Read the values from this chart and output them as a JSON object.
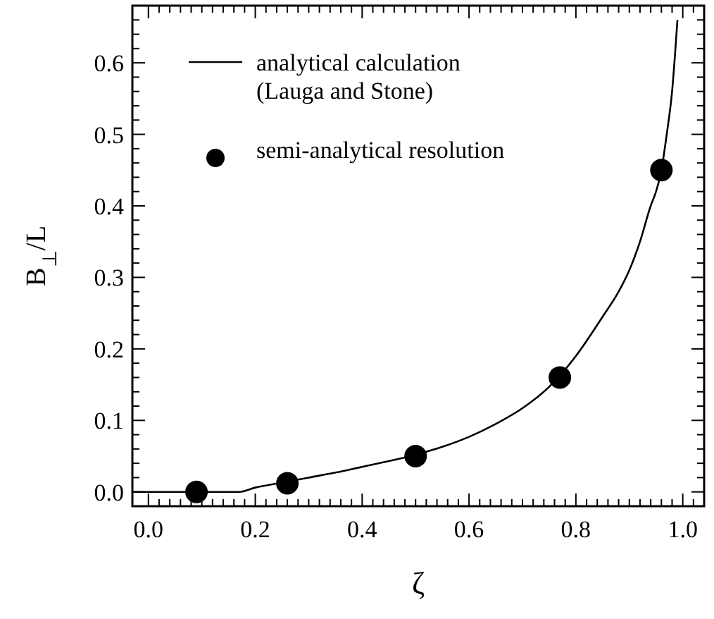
{
  "chart_data": {
    "type": "line",
    "xlabel": "ζ",
    "ylabel": "B$_{⊥}$/L",
    "xlim": [
      -0.03,
      1.04
    ],
    "ylim": [
      -0.02,
      0.68
    ],
    "xticks": [
      {
        "value": 0,
        "label": "0.0"
      },
      {
        "value": 0.02,
        "label": null
      },
      {
        "value": 0.04,
        "label": null
      },
      {
        "value": 0.06,
        "label": null
      },
      {
        "value": 0.08,
        "label": null
      },
      {
        "value": 0.1,
        "label": null
      },
      {
        "value": 0.12,
        "label": null
      },
      {
        "value": 0.14,
        "label": null
      },
      {
        "value": 0.16,
        "label": null
      },
      {
        "value": 0.18,
        "label": null
      },
      {
        "value": 0.2,
        "label": "0.2"
      },
      {
        "value": 0.22,
        "label": null
      },
      {
        "value": 0.24,
        "label": null
      },
      {
        "value": 0.26,
        "label": null
      },
      {
        "value": 0.28,
        "label": null
      },
      {
        "value": 0.3,
        "label": null
      },
      {
        "value": 0.32,
        "label": null
      },
      {
        "value": 0.34,
        "label": null
      },
      {
        "value": 0.36,
        "label": null
      },
      {
        "value": 0.38,
        "label": null
      },
      {
        "value": 0.4,
        "label": "0.4"
      },
      {
        "value": 0.42,
        "label": null
      },
      {
        "value": 0.44,
        "label": null
      },
      {
        "value": 0.46,
        "label": null
      },
      {
        "value": 0.48,
        "label": null
      },
      {
        "value": 0.5,
        "label": null
      },
      {
        "value": 0.52,
        "label": null
      },
      {
        "value": 0.54,
        "label": null
      },
      {
        "value": 0.56,
        "label": null
      },
      {
        "value": 0.58,
        "label": null
      },
      {
        "value": 0.6,
        "label": "0.6"
      },
      {
        "value": 0.62,
        "label": null
      },
      {
        "value": 0.64,
        "label": null
      },
      {
        "value": 0.66,
        "label": null
      },
      {
        "value": 0.68,
        "label": null
      },
      {
        "value": 0.7,
        "label": null
      },
      {
        "value": 0.72,
        "label": null
      },
      {
        "value": 0.74,
        "label": null
      },
      {
        "value": 0.76,
        "label": null
      },
      {
        "value": 0.78,
        "label": null
      },
      {
        "value": 0.8,
        "label": "0.8"
      },
      {
        "value": 0.82,
        "label": null
      },
      {
        "value": 0.84,
        "label": null
      },
      {
        "value": 0.86,
        "label": null
      },
      {
        "value": 0.88,
        "label": null
      },
      {
        "value": 0.9,
        "label": null
      },
      {
        "value": 0.92,
        "label": null
      },
      {
        "value": 0.94,
        "label": null
      },
      {
        "value": 0.96,
        "label": null
      },
      {
        "value": 0.98,
        "label": null
      },
      {
        "value": 1,
        "label": "1.0"
      },
      {
        "value": 1.02,
        "label": null
      }
    ],
    "yticks": [
      {
        "value": 0,
        "label": "0.0"
      },
      {
        "value": 0.02,
        "label": null
      },
      {
        "value": 0.04,
        "label": null
      },
      {
        "value": 0.06,
        "label": null
      },
      {
        "value": 0.08,
        "label": null
      },
      {
        "value": 0.1,
        "label": "0.1"
      },
      {
        "value": 0.12,
        "label": null
      },
      {
        "value": 0.14,
        "label": null
      },
      {
        "value": 0.16,
        "label": null
      },
      {
        "value": 0.18,
        "label": null
      },
      {
        "value": 0.2,
        "label": "0.2"
      },
      {
        "value": 0.22,
        "label": null
      },
      {
        "value": 0.24,
        "label": null
      },
      {
        "value": 0.26,
        "label": null
      },
      {
        "value": 0.28,
        "label": null
      },
      {
        "value": 0.3,
        "label": "0.3"
      },
      {
        "value": 0.32,
        "label": null
      },
      {
        "value": 0.34,
        "label": null
      },
      {
        "value": 0.36,
        "label": null
      },
      {
        "value": 0.38,
        "label": null
      },
      {
        "value": 0.4,
        "label": "0.4"
      },
      {
        "value": 0.42,
        "label": null
      },
      {
        "value": 0.44,
        "label": null
      },
      {
        "value": 0.46,
        "label": null
      },
      {
        "value": 0.48,
        "label": null
      },
      {
        "value": 0.5,
        "label": "0.5"
      },
      {
        "value": 0.52,
        "label": null
      },
      {
        "value": 0.54,
        "label": null
      },
      {
        "value": 0.56,
        "label": null
      },
      {
        "value": 0.58,
        "label": null
      },
      {
        "value": 0.6,
        "label": "0.6"
      },
      {
        "value": 0.62,
        "label": null
      },
      {
        "value": 0.64,
        "label": null
      },
      {
        "value": 0.66,
        "label": null
      }
    ],
    "grid": false,
    "legend": "top left",
    "series": [
      {
        "name": "analytical calculation\n(Lauga and Stone)",
        "color": "#000000",
        "marker": "none",
        "line_style": "solid",
        "x": [
          -0.03,
          0.05,
          0.1,
          0.17,
          0.2,
          0.25,
          0.3,
          0.35,
          0.4,
          0.45,
          0.5,
          0.55,
          0.6,
          0.65,
          0.7,
          0.75,
          0.8,
          0.85,
          0.88,
          0.9,
          0.92,
          0.94,
          0.95,
          0.96,
          0.97,
          0.98,
          0.99
        ],
        "values": [
          0,
          0,
          0,
          0,
          0.006,
          0.013,
          0.02,
          0.027,
          0.035,
          0.043,
          0.052,
          0.063,
          0.077,
          0.095,
          0.117,
          0.147,
          0.19,
          0.245,
          0.28,
          0.31,
          0.35,
          0.4,
          0.42,
          0.45,
          0.5,
          0.56,
          0.66
        ]
      },
      {
        "name": "semi-analytical resolution",
        "type": "scatter",
        "color": "#000000",
        "marker": "circle",
        "x": [
          0.09,
          0.26,
          0.5,
          0.77,
          0.96
        ],
        "values": [
          0,
          0.012,
          0.05,
          0.16,
          0.45
        ]
      }
    ]
  }
}
